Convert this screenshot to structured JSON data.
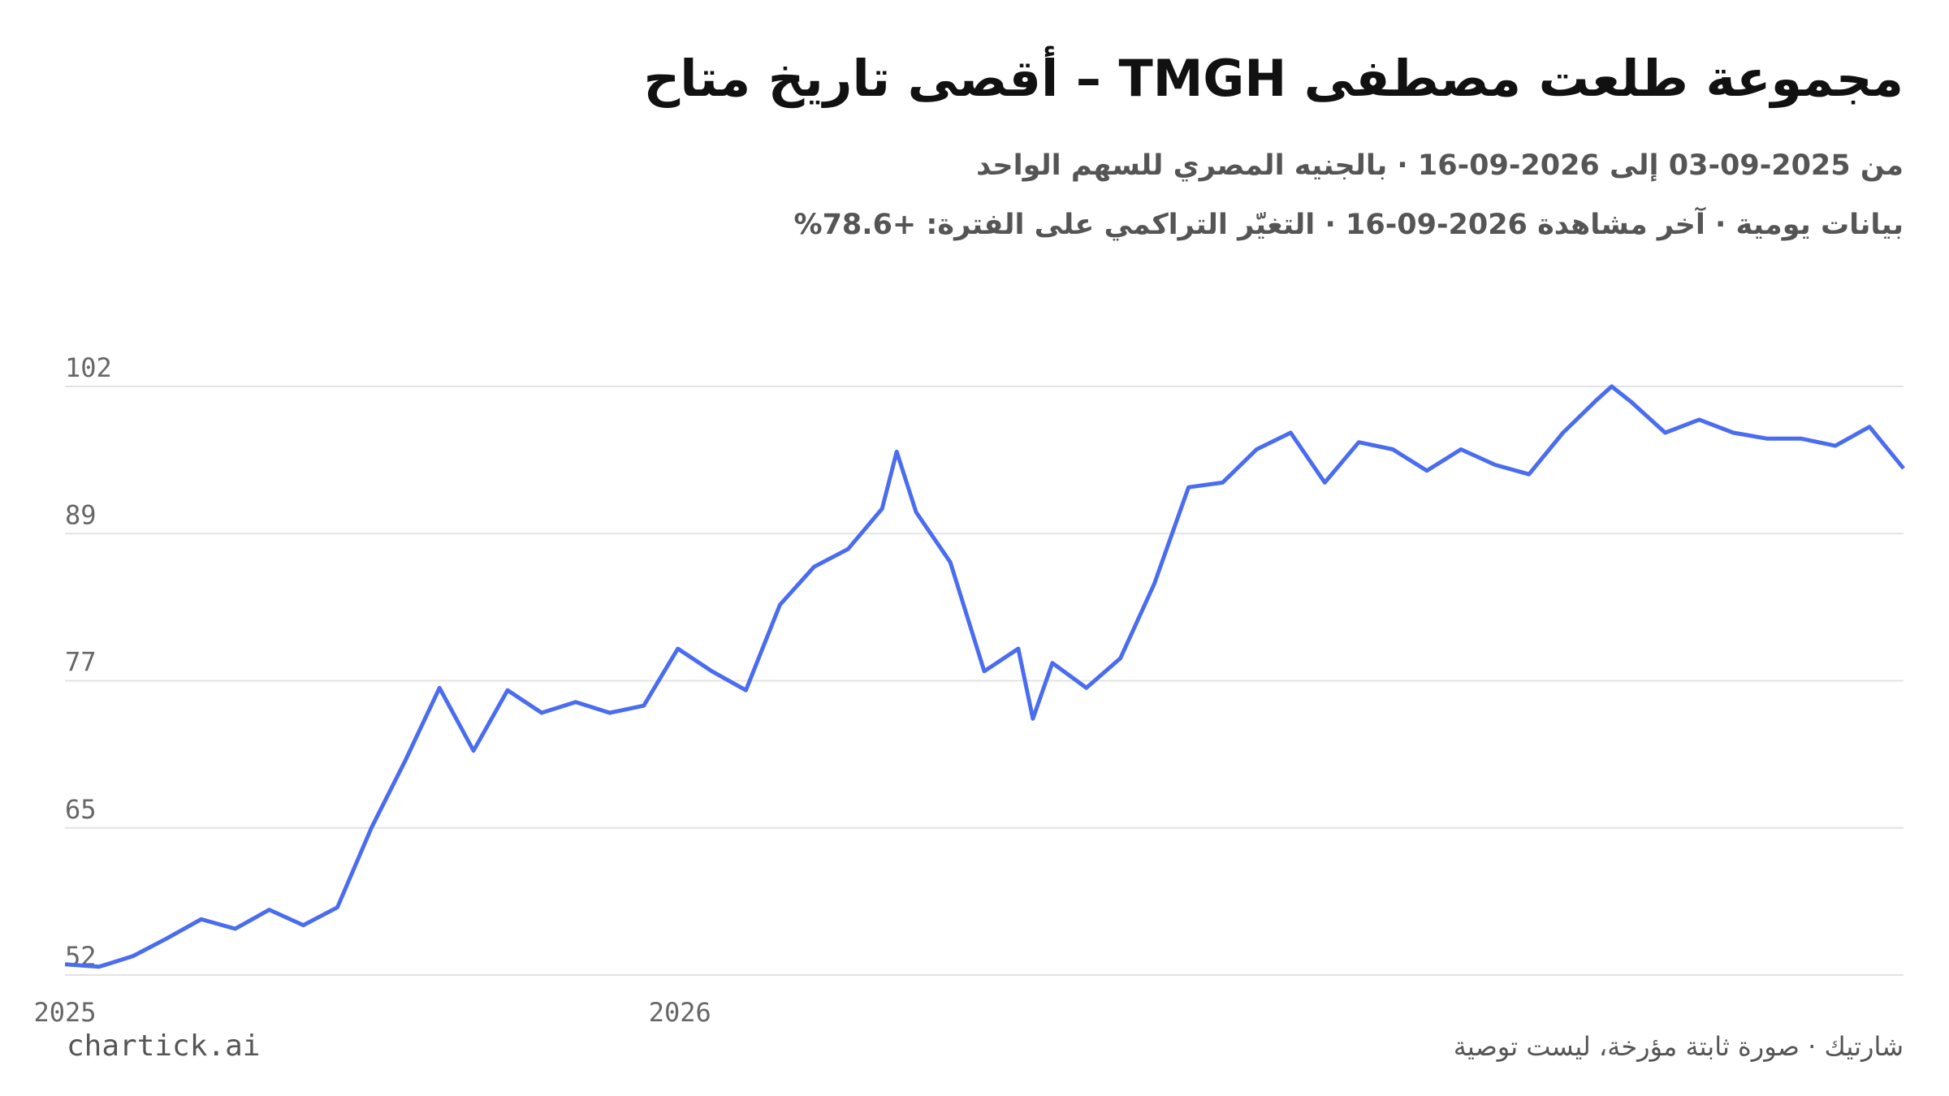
{
  "chart_data": {
    "type": "line",
    "title": "مجموعة طلعت مصطفى TMGH – أقصى تاريخ متاح",
    "subtitle": "من 2025-09-03 إلى 2026-09-16 · بالجنيه المصري للسهم الواحد",
    "subtitle2": "بيانات يومية · آخر مشاهدة 2026-09-16 · التغيّر التراكمي على الفترة: +78.6%",
    "source_left": "chartick.ai",
    "source_right": "شارتيك · صورة ثابتة مؤرخة، ليست توصية",
    "x": [
      "2025-09-03",
      "2025-09-10",
      "2025-09-17",
      "2025-09-24",
      "2025-10-01",
      "2025-10-08",
      "2025-10-15",
      "2025-10-22",
      "2025-10-29",
      "2025-11-05",
      "2025-11-12",
      "2025-11-19",
      "2025-11-26",
      "2025-12-03",
      "2025-12-10",
      "2025-12-17",
      "2025-12-24",
      "2025-12-31",
      "2026-01-07",
      "2026-01-14",
      "2026-01-21",
      "2026-01-28",
      "2026-02-04",
      "2026-02-11",
      "2026-02-18",
      "2026-02-21",
      "2026-02-25",
      "2026-03-04",
      "2026-03-11",
      "2026-03-18",
      "2026-03-21",
      "2026-03-25",
      "2026-04-01",
      "2026-04-08",
      "2026-04-15",
      "2026-04-22",
      "2026-04-29",
      "2026-05-06",
      "2026-05-13",
      "2026-05-20",
      "2026-05-27",
      "2026-06-03",
      "2026-06-10",
      "2026-06-17",
      "2026-06-24",
      "2026-07-01",
      "2026-07-08",
      "2026-07-15",
      "2026-07-18",
      "2026-07-22",
      "2026-07-29",
      "2026-08-05",
      "2026-08-12",
      "2026-08-19",
      "2026-08-26",
      "2026-09-02",
      "2026-09-09",
      "2026-09-16"
    ],
    "series": [
      {
        "name": "TMGH",
        "color": "#4a6cf0",
        "values": [
          53.1,
          52.9,
          53.8,
          55.3,
          56.9,
          56.1,
          57.7,
          56.4,
          57.9,
          64.6,
          70.3,
          76.4,
          71.1,
          76.2,
          74.3,
          75.2,
          74.3,
          74.9,
          79.7,
          77.8,
          76.2,
          83.4,
          86.6,
          88.1,
          91.5,
          96.3,
          91.2,
          87.0,
          77.8,
          79.7,
          73.8,
          78.5,
          76.4,
          78.9,
          85.2,
          93.3,
          93.7,
          96.5,
          97.9,
          93.7,
          97.1,
          96.5,
          94.7,
          96.5,
          95.2,
          94.4,
          97.9,
          100.7,
          101.8,
          100.5,
          97.9,
          99.0,
          97.9,
          97.4,
          97.4,
          96.8,
          98.4,
          94.9
        ]
      }
    ],
    "ylim": [
      52.2,
      101.8
    ],
    "yticks": [
      {
        "value": 52.2,
        "label": "52"
      },
      {
        "value": 64.6,
        "label": "65"
      },
      {
        "value": 77.0,
        "label": "77"
      },
      {
        "value": 89.4,
        "label": "89"
      },
      {
        "value": 101.8,
        "label": "102"
      }
    ],
    "xticks": [
      {
        "value": "2025-09-03",
        "label": "2025"
      },
      {
        "value": "2026-01-01",
        "label": "2026"
      }
    ],
    "grid": true
  }
}
